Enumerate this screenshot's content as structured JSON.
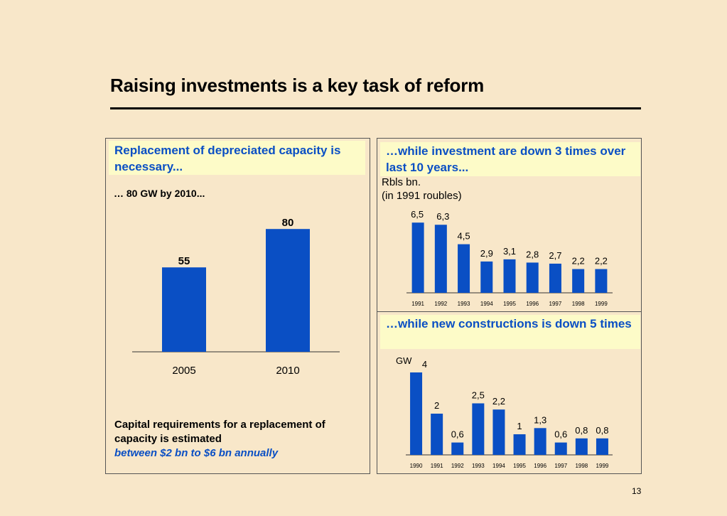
{
  "page": {
    "title": "Raising investments is a key task of reform",
    "page_number": "13"
  },
  "left_panel": {
    "header": "Replacement of depreciated capacity is necessary...",
    "note": "… 80 GW by  2010...",
    "caption_line1": "Capital requirements for a replacement of",
    "caption_line2": "capacity is estimated",
    "caption_line3": "between $2 bn to $6 bn annually"
  },
  "right_top_panel": {
    "header": "…while investment are down 3 times over last 10 years...",
    "unit_line1": "Rbls bn.",
    "unit_line2": "(in 1991 roubles)"
  },
  "right_bottom_panel": {
    "header": "…while new constructions is down 5 times",
    "unit": "GW"
  },
  "colors": {
    "bar": "#0a4fc4",
    "header_text": "#0a4fc4",
    "header_bg": "#fdfbc8",
    "background": "#f8e7c9"
  },
  "chart_data": [
    {
      "type": "bar",
      "categories": [
        "2005",
        "2010"
      ],
      "values": [
        55,
        80
      ],
      "labels": [
        "55",
        "80"
      ]
    },
    {
      "type": "bar",
      "categories": [
        "1991",
        "1992",
        "1993",
        "1994",
        "1995",
        "1996",
        "1997",
        "1998",
        "1999"
      ],
      "values": [
        6.5,
        6.3,
        4.5,
        2.9,
        3.1,
        2.8,
        2.7,
        2.2,
        2.2
      ],
      "labels": [
        "6,5",
        "6,3",
        "4,5",
        "2,9",
        "3,1",
        "2,8",
        "2,7",
        "2,2",
        "2,2"
      ],
      "ylabel": "Rbls bn. (in 1991 roubles)"
    },
    {
      "type": "bar",
      "categories": [
        "1990",
        "1991",
        "1992",
        "1993",
        "1994",
        "1995",
        "1996",
        "1997",
        "1998",
        "1999"
      ],
      "values": [
        4,
        2,
        0.6,
        2.5,
        2.2,
        1,
        1.3,
        0.6,
        0.8,
        0.8
      ],
      "labels": [
        "4",
        "2",
        "0,6",
        "2,5",
        "2,2",
        "1",
        "1,3",
        "0,6",
        "0,8",
        "0,8"
      ],
      "ylabel": "GW"
    }
  ]
}
